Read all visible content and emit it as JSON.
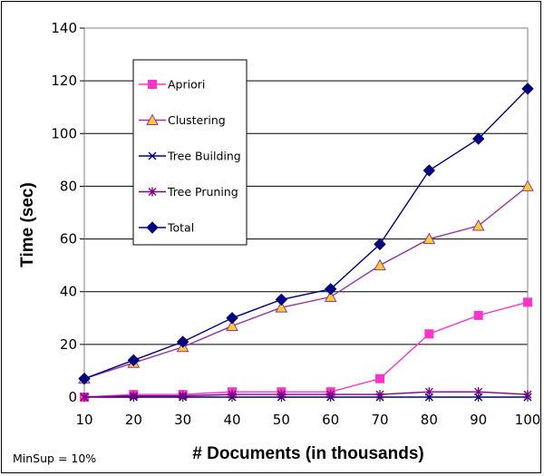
{
  "chart_data": {
    "type": "line",
    "title": "",
    "xlabel": "# Documents (in thousands)",
    "ylabel": "Time (sec)",
    "note": "MinSup = 10%",
    "x": [
      10,
      20,
      30,
      40,
      50,
      60,
      70,
      80,
      90,
      100
    ],
    "ylim": [
      0,
      140
    ],
    "yticks": [
      0,
      20,
      40,
      60,
      80,
      100,
      120,
      140
    ],
    "grid": true,
    "legend_position": "top-left",
    "series": [
      {
        "name": "Apriori",
        "color": "#ff33cc",
        "marker": "square",
        "values": [
          0,
          1,
          1,
          2,
          2,
          2,
          7,
          24,
          31,
          36
        ]
      },
      {
        "name": "Clustering",
        "color": "#993399",
        "marker": "triangle",
        "values": [
          7,
          13,
          19,
          27,
          34,
          38,
          50,
          60,
          65,
          80
        ]
      },
      {
        "name": "Tree Building",
        "color": "#000080",
        "marker": "x",
        "values": [
          0,
          0,
          0,
          0,
          0,
          0,
          0,
          0,
          0,
          0
        ]
      },
      {
        "name": "Tree Pruning",
        "color": "#800080",
        "marker": "star",
        "values": [
          0,
          0.5,
          0.5,
          1,
          1,
          1,
          1,
          2,
          2,
          1
        ]
      },
      {
        "name": "Total",
        "color": "#000080",
        "marker": "diamond",
        "values": [
          7,
          14,
          21,
          30,
          37,
          41,
          58,
          86,
          98,
          117
        ]
      }
    ]
  }
}
